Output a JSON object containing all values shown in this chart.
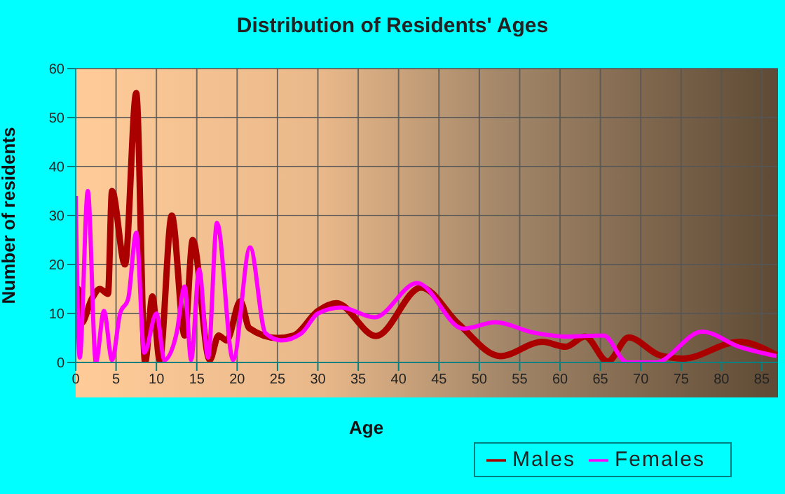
{
  "chart_data": {
    "type": "line",
    "title": "Distribution of Residents' Ages",
    "xlabel": "Age",
    "ylabel": "Number of residents",
    "xlim": [
      0,
      87
    ],
    "xticks": [
      0,
      5,
      10,
      15,
      20,
      25,
      30,
      35,
      40,
      45,
      50,
      55,
      60,
      65,
      70,
      75,
      80,
      85
    ],
    "ylim": [
      0,
      60
    ],
    "yticks": [
      0,
      10,
      20,
      30,
      40,
      50,
      60
    ],
    "grid": true,
    "legend": "bottom",
    "marker": "none",
    "line_style": "solid",
    "series": [
      {
        "name": "Males",
        "color": "#aa0000",
        "x": [
          0,
          0.3,
          0.7,
          2,
          3,
          4,
          4.5,
          6.1,
          7.5,
          8.6,
          9.5,
          10.4,
          11.9,
          13.5,
          14.5,
          16.6,
          17.7,
          18.7,
          20.4,
          21.5,
          25,
          27,
          30,
          32.3,
          37.2,
          42.8,
          47.4,
          52.6,
          57.8,
          60.7,
          63.1,
          65.9,
          68.5,
          72.3,
          75.2,
          82.2,
          86.8
        ],
        "values": [
          6,
          15,
          8,
          13,
          15,
          14,
          35,
          20,
          55,
          0,
          13.5,
          0.5,
          30,
          5.5,
          25,
          0.5,
          5.5,
          4.5,
          12.5,
          7,
          5,
          5.5,
          10.5,
          12.1,
          5.4,
          15.3,
          7.9,
          1.3,
          4.2,
          3.2,
          5.3,
          0.2,
          5.1,
          1.5,
          0.8,
          4.2,
          1.5
        ]
      },
      {
        "name": "Females",
        "color": "#ff00ff",
        "x": [
          0,
          0.5,
          1.5,
          2.5,
          3.5,
          4.5,
          5.5,
          6.5,
          7.5,
          8.5,
          10,
          11,
          12.5,
          13.5,
          14.3,
          15.3,
          16.4,
          17.5,
          19.5,
          21.6,
          23.5,
          25.5,
          28,
          30,
          32.9,
          37,
          42.3,
          48,
          52,
          56.7,
          60.7,
          65.4,
          68.3,
          71.8,
          77.6,
          82.2,
          86.8
        ],
        "values": [
          34,
          1,
          35,
          0,
          10.5,
          0.5,
          10,
          13,
          26.5,
          2,
          10,
          0.5,
          6,
          15.5,
          0.5,
          19,
          1,
          28.5,
          0.5,
          23.5,
          6,
          4.5,
          6,
          10,
          11.2,
          9.2,
          16.2,
          6.9,
          8.2,
          6.1,
          5.3,
          5.5,
          0,
          0,
          6.3,
          3.2,
          1.3
        ]
      }
    ]
  }
}
